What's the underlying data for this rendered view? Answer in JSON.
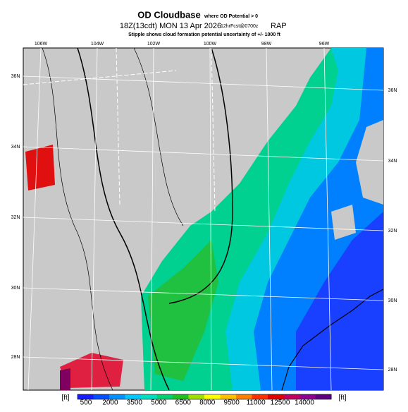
{
  "header": {
    "title": "OD Cloudbase",
    "title_note": "where OD Potential > 0",
    "time": "18Z(13cdt) MON 13 Apr 2026",
    "forecast": "12hrFcst@0700z",
    "model": "RAP",
    "stipple_note": "Stipple shows cloud formation potential uncertainty of +/- 1000 ft"
  },
  "map": {
    "top_labels": [
      "106W",
      "104W",
      "102W",
      "100W",
      "98W",
      "96W"
    ],
    "left_labels": [
      "36N",
      "34N",
      "32N",
      "30N",
      "28N"
    ],
    "right_labels": [
      "36N",
      "34N",
      "32N",
      "30N",
      "28N"
    ]
  },
  "colorbar": {
    "unit": "[ft]",
    "ticks": [
      500,
      2000,
      3500,
      5000,
      6500,
      8000,
      9500,
      11000,
      12500,
      14000
    ],
    "colors": [
      "#1a1aff",
      "#0050ff",
      "#0090ff",
      "#00c8ff",
      "#00e0c0",
      "#00d070",
      "#20c020",
      "#a0e000",
      "#ffff00",
      "#ffc000",
      "#ff8000",
      "#ff3000",
      "#e00000",
      "#c00060",
      "#900090",
      "#600080"
    ]
  }
}
